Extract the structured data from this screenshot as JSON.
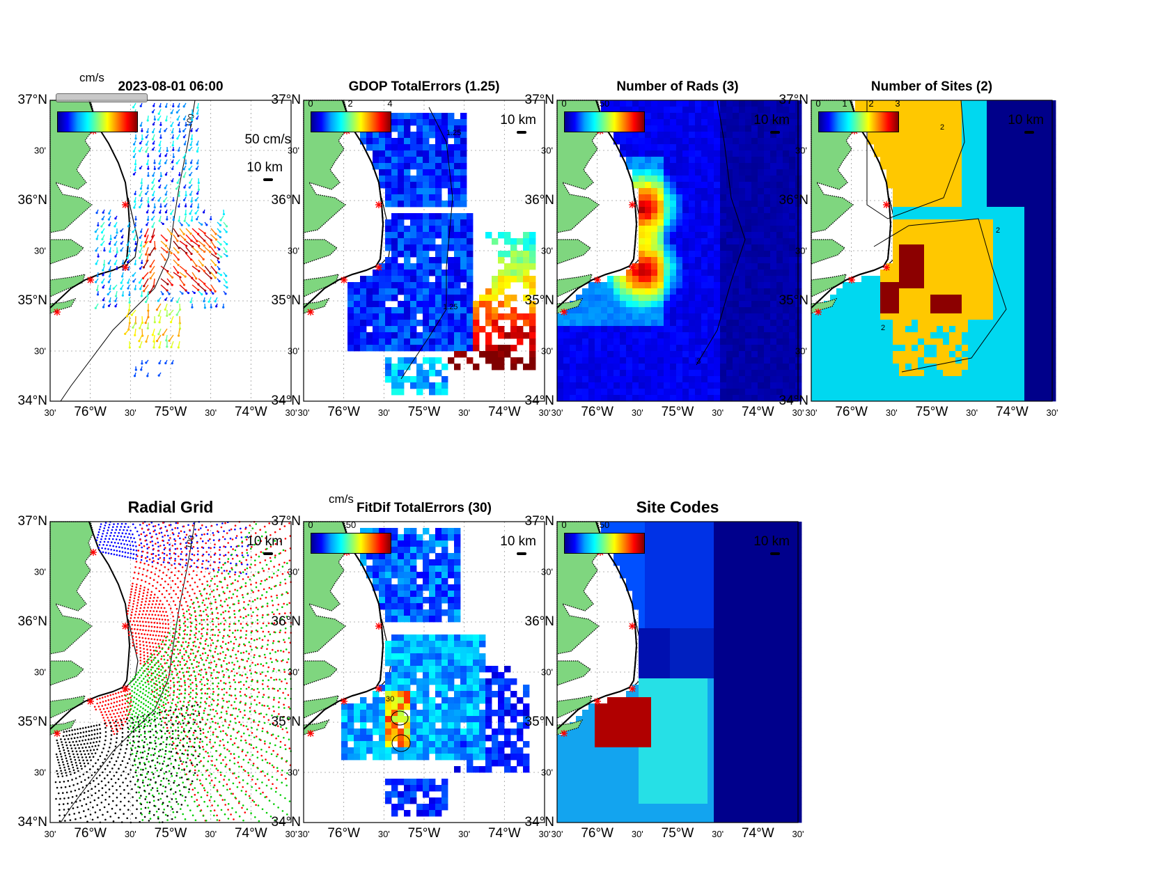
{
  "figure": {
    "top_panels": [
      {
        "id": "p1",
        "title": "2023-08-01 06:00",
        "cb_unit": "cm/s",
        "cb_ticks": [],
        "vector_scale": "50 cm/s",
        "scale_label": "10 km",
        "contour_label": "100"
      },
      {
        "id": "p2",
        "title": "GDOP TotalErrors (1.25)",
        "cb_ticks": [
          "0",
          "2",
          "4"
        ],
        "scale_label": "10 km",
        "contour_label": "1.25"
      },
      {
        "id": "p3",
        "title": "Number of Rads (3)",
        "cb_ticks": [
          "0",
          "50"
        ],
        "scale_label": "10 km",
        "contour_label": "3"
      },
      {
        "id": "p4",
        "title": "Number of Sites (2)",
        "cb_ticks": [
          "0",
          "1",
          "2",
          "3"
        ],
        "scale_label": "10 km",
        "contour_label": "2"
      }
    ],
    "bottom_panels": [
      {
        "id": "p5",
        "title": "Radial Grid",
        "scale_label": "10 km",
        "contour_label": "100"
      },
      {
        "id": "p6",
        "title": "FitDif TotalErrors (30)",
        "cb_unit": "cm/s",
        "cb_ticks": [
          "0",
          "50"
        ],
        "scale_label": "10 km",
        "contour_label": "30"
      },
      {
        "id": "p7",
        "title": "Site Codes",
        "cb_ticks": [
          "0",
          "50"
        ],
        "scale_label": "10 km"
      }
    ],
    "lat_labels": [
      "37°N",
      "36°N",
      "35°N",
      "34°N"
    ],
    "lat_minor": [
      "30'",
      "30'",
      "30'"
    ],
    "lon_labels": [
      "76°W",
      "75°W",
      "74°W"
    ],
    "lon_minor": [
      "30'",
      "30'",
      "30'",
      "30'"
    ],
    "colors": {
      "land": "#7fd67f",
      "coast": "#000000",
      "grid": "#9a9a9a",
      "star": "#ff0000",
      "site_blue": "#0000ff",
      "site_red": "#ff0000",
      "site_green": "#00cc00",
      "site_black": "#000000"
    }
  }
}
